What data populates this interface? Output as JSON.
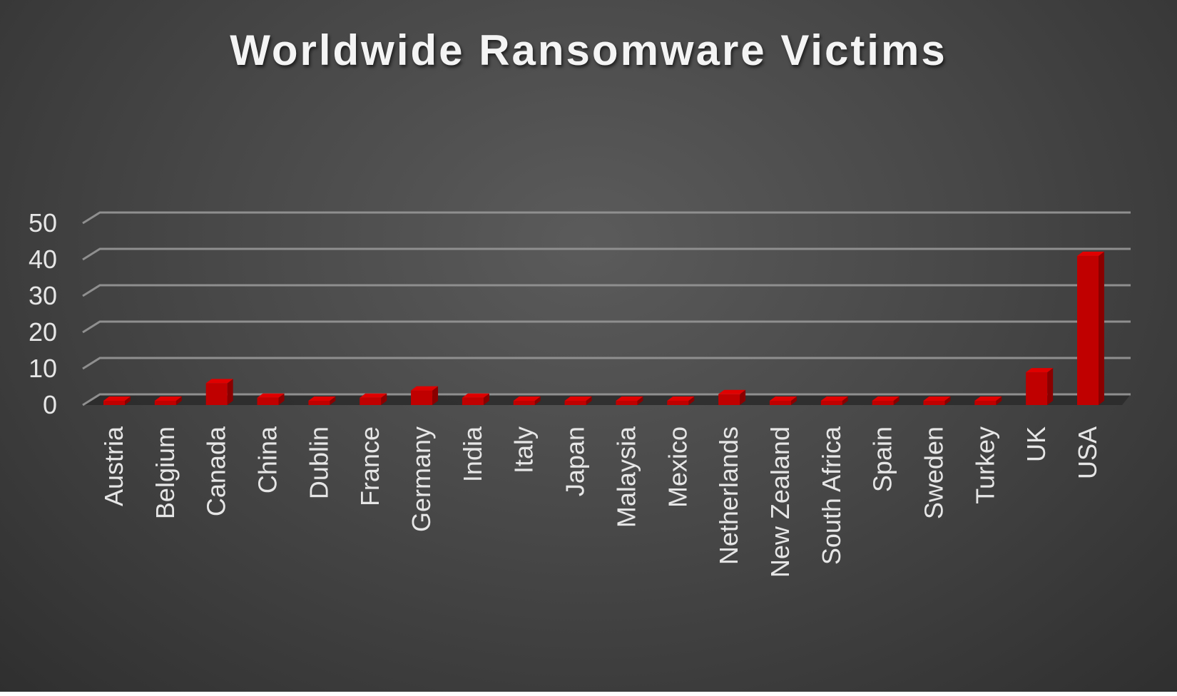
{
  "chart_data": {
    "type": "bar",
    "title": "Worldwide Ransomware Victims",
    "xlabel": "",
    "ylabel": "",
    "ylim": [
      0,
      50
    ],
    "yticks": [
      0,
      10,
      20,
      30,
      40,
      50
    ],
    "grid": true,
    "legend": "none",
    "categories": [
      "Austria",
      "Belgium",
      "Canada",
      "China",
      "Dublin",
      "France",
      "Germany",
      "India",
      "Italy",
      "Japan",
      "Malaysia",
      "Mexico",
      "Netherlands",
      "New Zealand",
      "South Africa",
      "Spain",
      "Sweden",
      "Turkey",
      "UK",
      "USA"
    ],
    "values": [
      1,
      1,
      6,
      2,
      1,
      2,
      4,
      2,
      1,
      1,
      1,
      1,
      3,
      1,
      1,
      1,
      1,
      1,
      9,
      41
    ],
    "colors": {
      "bar_front": "#c00000",
      "bar_side": "#8a0000",
      "bar_top": "#e00000",
      "grid": "#8f8f8f",
      "text": "#e6e6e6"
    }
  }
}
